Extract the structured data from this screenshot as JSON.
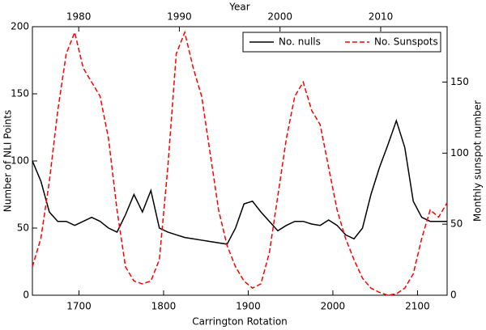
{
  "chart_data": {
    "type": "line",
    "xlabel": "Carrington Rotation",
    "ylabel": "Number of NLI Points",
    "x2label": "Year",
    "y2label": "Monthly sunspot number",
    "x": [
      1645,
      1655,
      1665,
      1675,
      1685,
      1695,
      1705,
      1715,
      1725,
      1735,
      1745,
      1755,
      1765,
      1775,
      1785,
      1795,
      1805,
      1815,
      1825,
      1835,
      1845,
      1855,
      1865,
      1875,
      1885,
      1895,
      1905,
      1915,
      1925,
      1935,
      1945,
      1955,
      1965,
      1975,
      1985,
      1995,
      2005,
      2015,
      2025,
      2035,
      2045,
      2055,
      2065,
      2075,
      2085,
      2095,
      2105,
      2115,
      2125,
      2135
    ],
    "series": [
      {
        "name": "No. nulls",
        "color": "#000000",
        "dash": false,
        "values": [
          100,
          85,
          62,
          55,
          55,
          52,
          55,
          58,
          55,
          50,
          47,
          60,
          75,
          62,
          78,
          50,
          47,
          45,
          43,
          42,
          41,
          40,
          39,
          38,
          50,
          68,
          70,
          62,
          55,
          48,
          52,
          55,
          55,
          53,
          52,
          56,
          52,
          45,
          42,
          50,
          75,
          95,
          112,
          130,
          110,
          70,
          58,
          55,
          55,
          55
        ]
      },
      {
        "name": "No. Sunspots",
        "color": "#ff0000",
        "dash": true,
        "axis": "y2",
        "values": [
          20,
          40,
          80,
          130,
          170,
          185,
          160,
          150,
          140,
          110,
          60,
          20,
          10,
          8,
          10,
          25,
          90,
          170,
          185,
          160,
          140,
          100,
          60,
          35,
          20,
          10,
          5,
          8,
          30,
          70,
          110,
          140,
          150,
          130,
          120,
          90,
          60,
          40,
          25,
          12,
          5,
          2,
          0,
          1,
          5,
          15,
          40,
          60,
          55,
          65
        ]
      }
    ],
    "xlim": [
      1645,
      2135
    ],
    "xticks": [
      1700,
      1800,
      1900,
      2000,
      2100
    ],
    "x2lim": [
      1975.4,
      2016.6
    ],
    "x2ticks": [
      1980,
      1990,
      2000,
      2010
    ],
    "ylim": [
      0,
      200
    ],
    "yticks": [
      0,
      50,
      100,
      150,
      200
    ],
    "y2lim": [
      0,
      189
    ],
    "y2ticks": [
      0,
      50,
      100,
      150
    ],
    "legend": "upper right"
  }
}
